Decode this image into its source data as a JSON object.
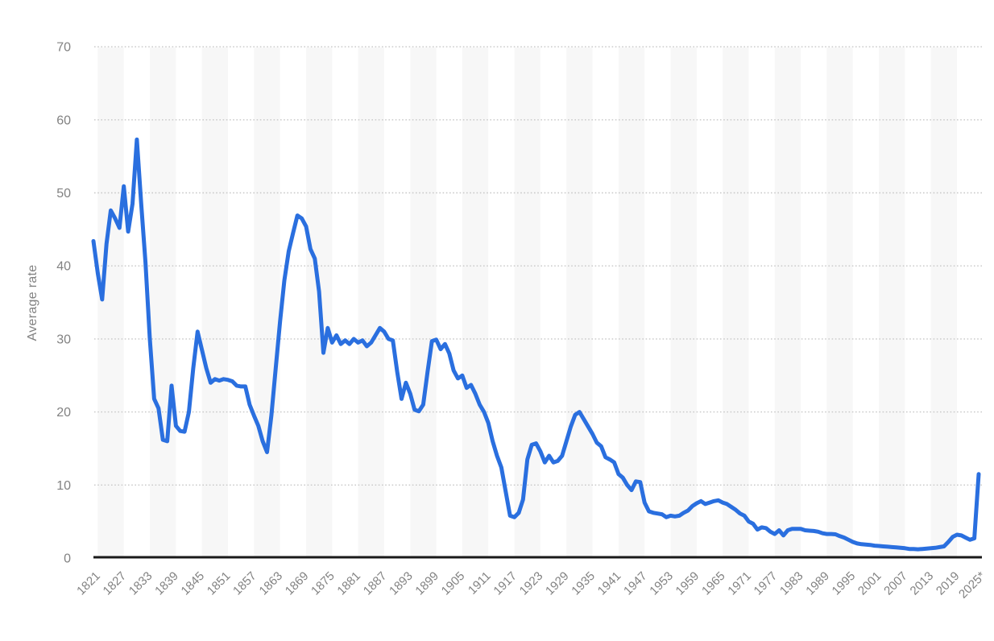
{
  "chart_data": {
    "type": "line",
    "title": "",
    "xlabel": "",
    "ylabel": "Average rate",
    "x_range": [
      1821,
      2025
    ],
    "x_step": 1,
    "ylim": [
      0,
      70
    ],
    "y_ticks": [
      0,
      10,
      20,
      30,
      40,
      50,
      60,
      70
    ],
    "x_tick_interval": 6,
    "x_tick_labels": [
      "1821",
      "1827",
      "1833",
      "1839",
      "1845",
      "1851",
      "1857",
      "1863",
      "1869",
      "1875",
      "1881",
      "1887",
      "1893",
      "1899",
      "1905",
      "1911",
      "1917",
      "1923",
      "1929",
      "1935",
      "1941",
      "1947",
      "1953",
      "1959",
      "1965",
      "1971",
      "1977",
      "1983",
      "1989",
      "1995",
      "2001",
      "2007",
      "2013",
      "2019",
      "2025*"
    ],
    "grid": "horizontal-dotted",
    "plot_bands": "alternating-6-year-vertical",
    "legend": "none",
    "series": [
      {
        "name": "Average rate",
        "values": [
          43.4,
          39.0,
          35.4,
          43.0,
          47.6,
          46.5,
          45.2,
          50.9,
          44.7,
          48.5,
          57.3,
          48.5,
          40.5,
          30.0,
          21.8,
          20.5,
          16.2,
          16.0,
          23.6,
          18.1,
          17.4,
          17.3,
          20.0,
          26.0,
          31.0,
          28.5,
          26.0,
          24.0,
          24.5,
          24.3,
          24.5,
          24.4,
          24.2,
          23.6,
          23.5,
          23.5,
          21.0,
          19.5,
          18.1,
          16.0,
          14.5,
          19.5,
          26.0,
          32.4,
          38.0,
          42.0,
          44.5,
          46.9,
          46.5,
          45.4,
          42.3,
          41.0,
          36.5,
          28.1,
          31.5,
          29.5,
          30.5,
          29.3,
          29.8,
          29.3,
          30.0,
          29.5,
          29.8,
          29.0,
          29.5,
          30.5,
          31.5,
          31.0,
          30.0,
          29.8,
          25.5,
          21.8,
          24.0,
          22.5,
          20.3,
          20.1,
          21.0,
          25.5,
          29.7,
          29.9,
          28.6,
          29.3,
          28.0,
          25.7,
          24.6,
          25.0,
          23.3,
          23.7,
          22.5,
          21.0,
          20.0,
          18.5,
          16.0,
          14.0,
          12.4,
          9.1,
          5.8,
          5.6,
          6.2,
          8.0,
          13.5,
          15.5,
          15.7,
          14.6,
          13.1,
          14.0,
          13.1,
          13.3,
          14.0,
          16.0,
          18.0,
          19.6,
          20.0,
          19.0,
          18.0,
          17.0,
          15.8,
          15.3,
          13.8,
          13.5,
          13.1,
          11.5,
          11.0,
          10.0,
          9.3,
          10.5,
          10.4,
          7.6,
          6.4,
          6.2,
          6.1,
          6.0,
          5.6,
          5.8,
          5.7,
          5.8,
          6.2,
          6.5,
          7.1,
          7.5,
          7.8,
          7.4,
          7.6,
          7.8,
          7.9,
          7.6,
          7.4,
          7.0,
          6.6,
          6.1,
          5.8,
          5.0,
          4.7,
          3.9,
          4.2,
          4.1,
          3.6,
          3.3,
          3.8,
          3.1,
          3.8,
          4.0,
          4.0,
          4.0,
          3.8,
          3.75,
          3.7,
          3.6,
          3.4,
          3.3,
          3.3,
          3.25,
          3.0,
          2.8,
          2.5,
          2.2,
          2.0,
          1.9,
          1.85,
          1.8,
          1.7,
          1.65,
          1.6,
          1.55,
          1.5,
          1.45,
          1.4,
          1.35,
          1.25,
          1.25,
          1.2,
          1.25,
          1.3,
          1.35,
          1.4,
          1.5,
          1.6,
          2.2,
          2.9,
          3.2,
          3.1,
          2.8,
          2.5,
          2.7,
          11.5
        ]
      }
    ],
    "colors": {
      "line": "#2a6fdf",
      "band": "#f7f7f7",
      "grid": "#c7c7c7",
      "axis": "#1a1a1a",
      "tick_text": "#828282",
      "background": "#ffffff"
    }
  }
}
